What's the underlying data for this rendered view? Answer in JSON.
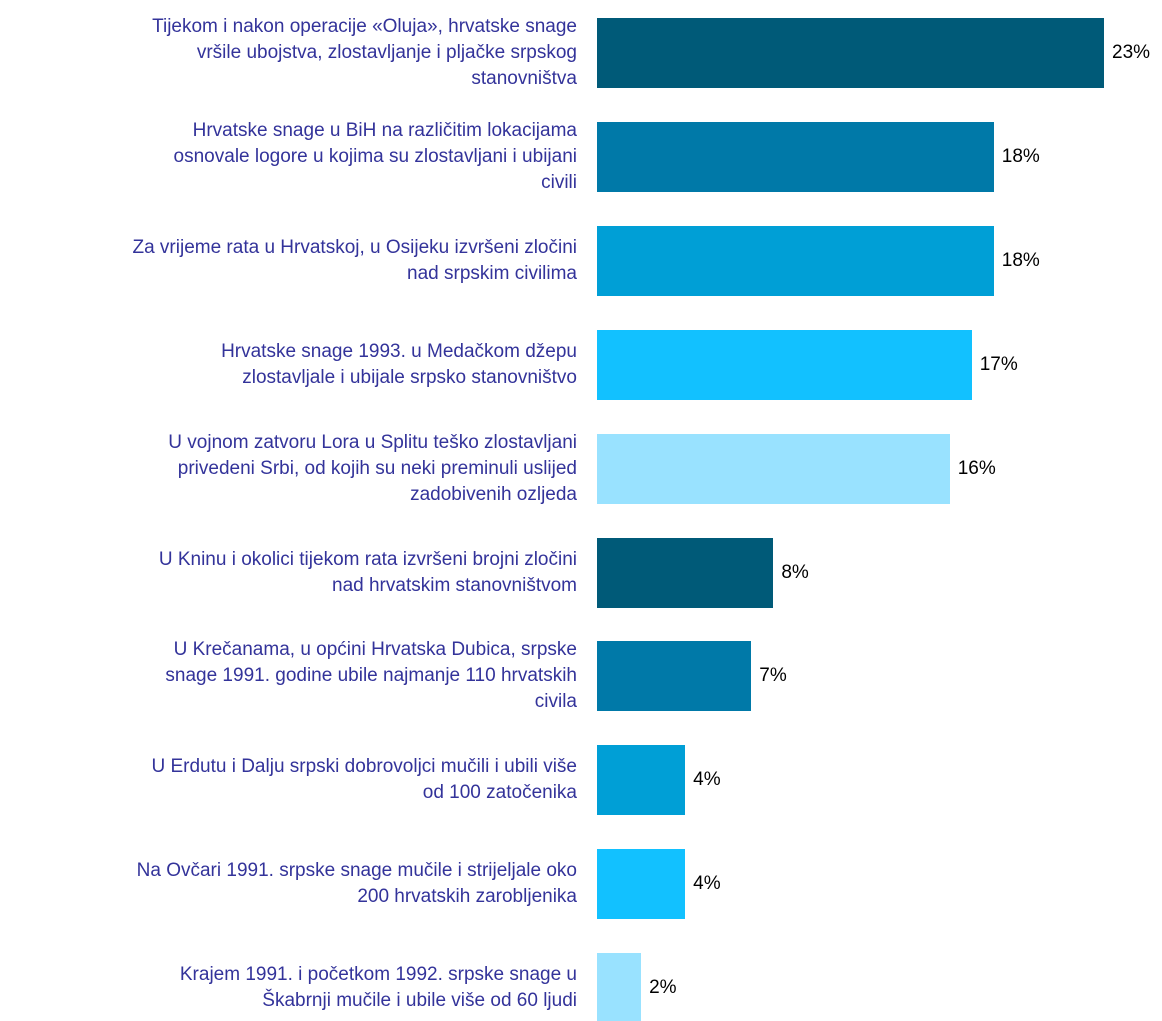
{
  "chart_data": {
    "type": "bar",
    "orientation": "horizontal",
    "categories": [
      "Tijekom i nakon operacije «Oluja», hrvatske snage\nvršile ubojstva, zlostavljanje i pljačke srpskog\nstanovništva",
      "Hrvatske snage u BiH na različitim lokacijama\nosnovale logore u kojima su zlostavljani i ubijani\ncivili",
      "Za vrijeme rata u Hrvatskoj, u Osijeku izvršeni zločini\nnad srpskim civilima",
      "Hrvatske snage 1993. u Medačkom džepu\nzlostavljale i ubijale srpsko stanovništvo",
      "U vojnom zatvoru Lora u Splitu teško zlostavljani\nprivedeni Srbi, od kojih su neki preminuli uslijed\nzadobivenih ozljeda",
      "U Kninu i okolici tijekom rata izvršeni brojni zločini\nnad hrvatskim stanovništvom",
      "U Krečanama, u općini Hrvatska Dubica, srpske\nsnage 1991. godine ubile najmanje 110 hrvatskih\ncivila",
      "U Erdutu i Dalju srpski dobrovoljci mučili i ubili više\nod 100 zatočenika",
      "Na Ovčari 1991. srpske snage mučile i strijeljale oko\n200 hrvatskih zarobljenika",
      "Krajem 1991. i početkom 1992. srpske snage u\nŠkabrnji mučile i ubile više od 60 ljudi"
    ],
    "values": [
      23,
      18,
      18,
      17,
      16,
      8,
      7,
      4,
      4,
      2
    ],
    "value_labels": [
      "23%",
      "18%",
      "18%",
      "17%",
      "16%",
      "8%",
      "7%",
      "4%",
      "4%",
      "2%"
    ],
    "colors": [
      "#005a78",
      "#0079a8",
      "#009fd6",
      "#12c1ff",
      "#99e2ff",
      "#005a78",
      "#0079a8",
      "#009fd6",
      "#12c1ff",
      "#99e2ff"
    ]
  }
}
